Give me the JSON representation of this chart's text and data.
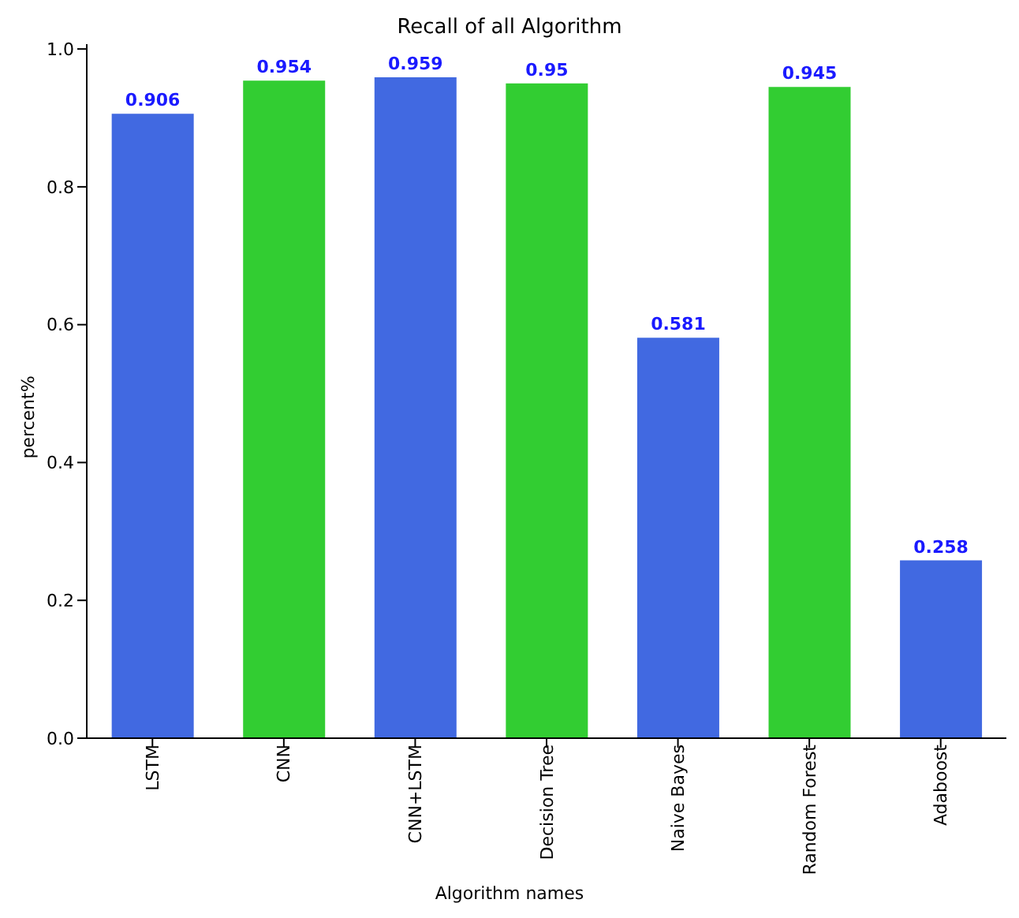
{
  "chart_data": {
    "type": "bar",
    "title": "Recall of all Algorithm",
    "xlabel": "Algorithm names",
    "ylabel": "percent%",
    "categories": [
      "LSTM",
      "CNN",
      "CNN+LSTM",
      "Decision Tree",
      "Naive Bayes",
      "Random Forest",
      "Adaboost"
    ],
    "values": [
      0.906,
      0.954,
      0.959,
      0.95,
      0.581,
      0.945,
      0.258
    ],
    "colors": [
      "#4169e1",
      "#32cd32",
      "#4169e1",
      "#32cd32",
      "#4169e1",
      "#32cd32",
      "#4169e1"
    ],
    "ylim": [
      0,
      1.007
    ],
    "yticks": [
      {
        "value": 0,
        "label": "0.0"
      },
      {
        "value": 0.2,
        "label": "0.2"
      },
      {
        "value": 0.4,
        "label": "0.4"
      },
      {
        "value": 0.6,
        "label": "0.6"
      },
      {
        "value": 0.8,
        "label": "0.8"
      },
      {
        "value": 1,
        "label": "1.0"
      }
    ],
    "data_labels": true,
    "grid": false
  }
}
